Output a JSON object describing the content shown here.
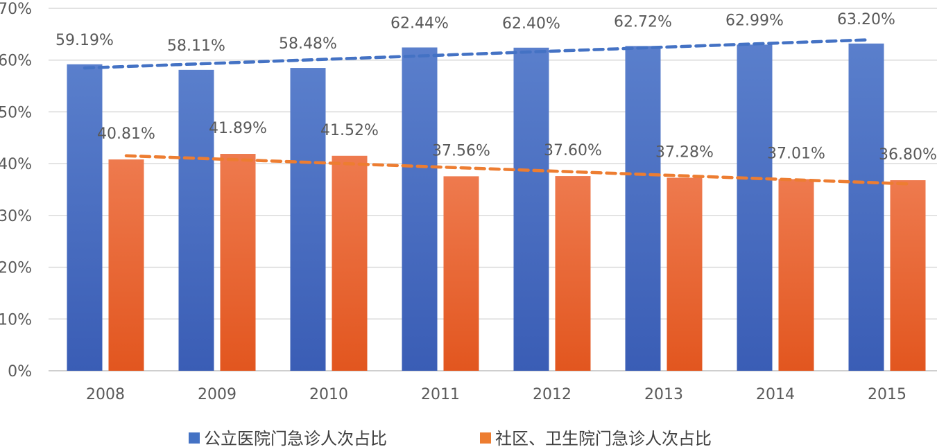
{
  "chart_data": {
    "type": "bar",
    "categories": [
      "2008",
      "2009",
      "2010",
      "2011",
      "2012",
      "2013",
      "2014",
      "2015"
    ],
    "series": [
      {
        "name": "公立医院门急诊人次占比",
        "values": [
          59.19,
          58.11,
          58.48,
          62.44,
          62.4,
          62.72,
          62.99,
          63.2
        ],
        "labels": [
          "59.19%",
          "58.11%",
          "58.48%",
          "62.44%",
          "62.40%",
          "62.72%",
          "62.99%",
          "63.20%"
        ],
        "color": "#4472C4",
        "trendline": "linear"
      },
      {
        "name": "社区、卫生院门急诊人次占比",
        "values": [
          40.81,
          41.89,
          41.52,
          37.56,
          37.6,
          37.28,
          37.01,
          36.8
        ],
        "labels": [
          "40.81%",
          "41.89%",
          "41.52%",
          "37.56%",
          "37.60%",
          "37.28%",
          "37.01%",
          "36.80%"
        ],
        "color": "#ED7D31",
        "trendline": "linear"
      }
    ],
    "y_ticks": [
      "0%",
      "10%",
      "20%",
      "30%",
      "40%",
      "50%",
      "60%",
      "70%"
    ],
    "ylim": [
      0,
      70
    ],
    "grid": true,
    "legend": "bottom",
    "title": "",
    "xlabel": "",
    "ylabel": ""
  }
}
